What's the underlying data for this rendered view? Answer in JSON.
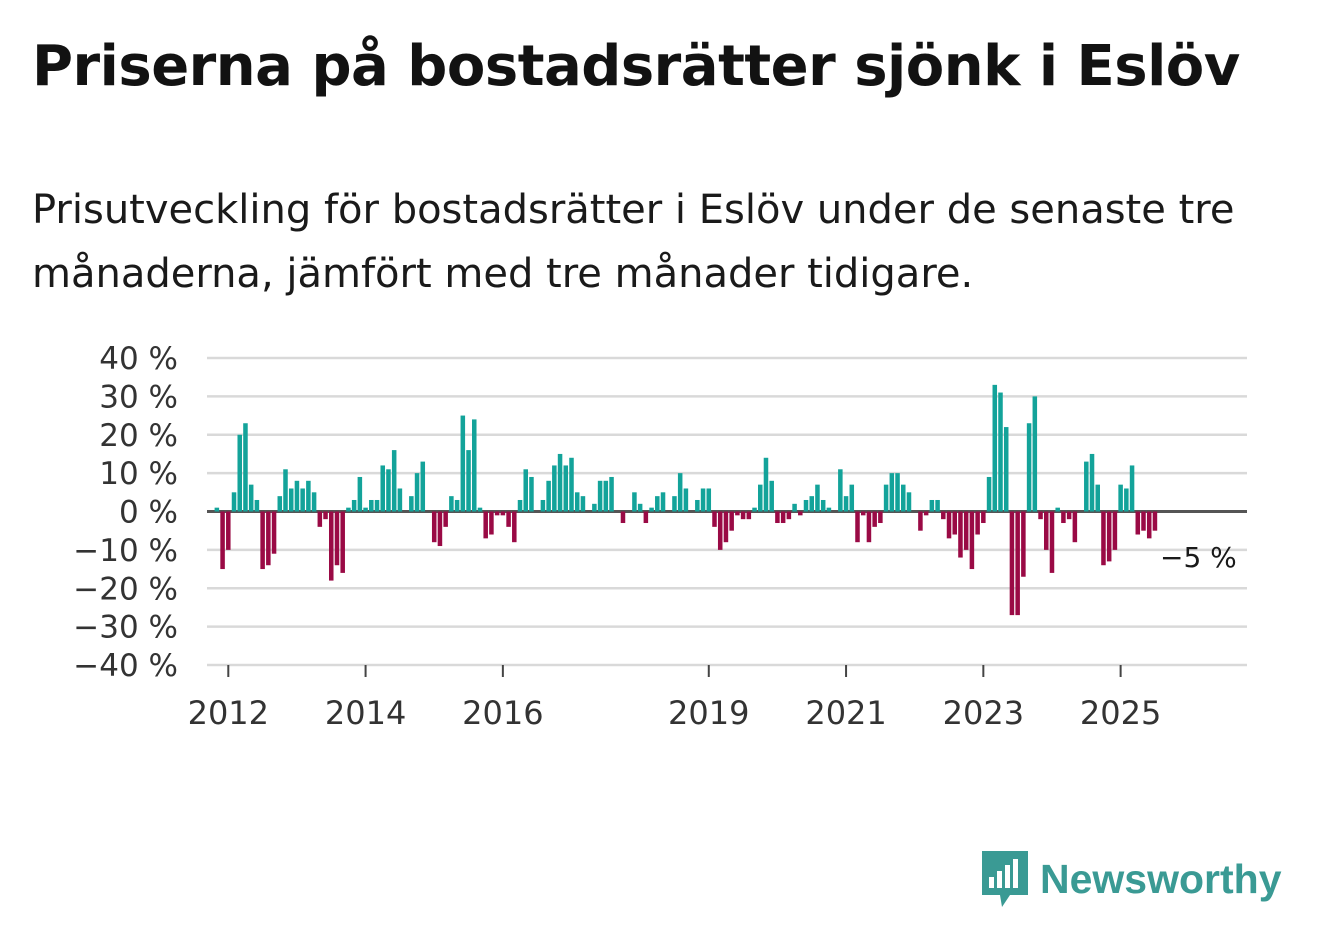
{
  "title": "Priserna på bostadsrätter sjönk i Eslöv",
  "subtitle": "Prisutveckling för bostadsrätter i Eslöv under de senaste tre månaderna, jämfört med tre månader tidigare.",
  "brand": "Newsworthy",
  "colors": {
    "positive": "#13a39a",
    "negative": "#9a0a45",
    "grid": "#d9d9d9",
    "zero_line": "#555555",
    "brand": "#3a9a94"
  },
  "chart_data": {
    "type": "bar",
    "title": "Priserna på bostadsrätter sjönk i Eslöv",
    "xlabel": "",
    "ylabel": "",
    "ylim": [
      -40,
      40
    ],
    "y_ticks": [
      40,
      30,
      20,
      10,
      0,
      -10,
      -20,
      -30,
      -40
    ],
    "y_tick_labels": [
      "40 %",
      "30 %",
      "20 %",
      "10 %",
      "0 %",
      "−10 %",
      "−20 %",
      "−30 %",
      "−40 %"
    ],
    "x_tick_labels": [
      "2012",
      "2014",
      "2016",
      "2019",
      "2021",
      "2023",
      "2025"
    ],
    "x_tick_index": [
      2,
      26,
      50,
      86,
      110,
      134,
      158
    ],
    "start_month": "2011-11",
    "annotation": "−5 %",
    "values": [
      1,
      -15,
      -10,
      5,
      20,
      23,
      7,
      3,
      -15,
      -14,
      -11,
      4,
      11,
      6,
      8,
      6,
      8,
      5,
      -4,
      -2,
      -18,
      -14,
      -16,
      1,
      3,
      9,
      1,
      3,
      3,
      12,
      11,
      16,
      6,
      0,
      4,
      10,
      13,
      0,
      -8,
      -9,
      -4,
      4,
      3,
      25,
      16,
      24,
      1,
      -7,
      -6,
      -1,
      -1,
      -4,
      -8,
      3,
      11,
      9,
      0,
      3,
      8,
      12,
      15,
      12,
      14,
      5,
      4,
      0,
      2,
      8,
      8,
      9,
      0,
      -3,
      0,
      5,
      2,
      -3,
      1,
      4,
      5,
      0,
      4,
      10,
      6,
      0,
      3,
      6,
      6,
      -4,
      -10,
      -8,
      -5,
      -1,
      -2,
      -2,
      1,
      7,
      14,
      8,
      -3,
      -3,
      -2,
      2,
      -1,
      3,
      4,
      7,
      3,
      1,
      0,
      11,
      4,
      7,
      -8,
      -1,
      -8,
      -4,
      -3,
      7,
      10,
      10,
      7,
      5,
      0,
      -5,
      -1,
      3,
      3,
      -2,
      -7,
      -6,
      -12,
      -10,
      -15,
      -6,
      -3,
      9,
      33,
      31,
      22,
      -27,
      -27,
      -17,
      23,
      30,
      -2,
      -10,
      -16,
      1,
      -3,
      -2,
      -8,
      0,
      13,
      15,
      7,
      -14,
      -13,
      -10,
      7,
      6,
      12,
      -6,
      -5,
      -7,
      -5
    ]
  }
}
